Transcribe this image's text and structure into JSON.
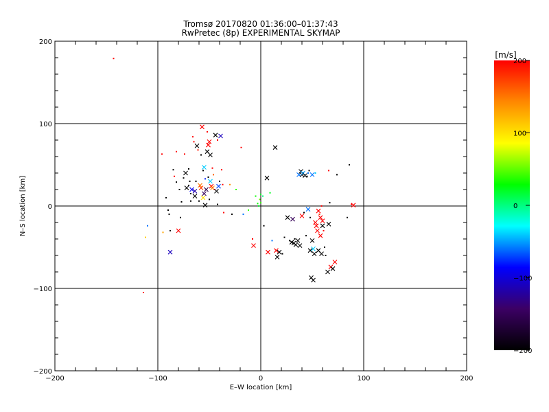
{
  "chart_data": {
    "type": "scatter",
    "title": "Tromsø 20170820 01:36:00–01:37:43",
    "subtitle": "RwPretec (8p) EXPERIMENTAL SKYMAP",
    "xlabel": "E–W location [km]",
    "ylabel": "N–S location [km]",
    "xlim": [
      -200,
      200
    ],
    "ylim": [
      -200,
      200
    ],
    "xticks": [
      -200,
      -100,
      0,
      100,
      200
    ],
    "yticks": [
      -200,
      -100,
      0,
      100,
      200
    ],
    "grid": true,
    "colorbar": {
      "label": "[m/s]",
      "range": [
        -200,
        200
      ],
      "ticks": [
        200,
        100,
        0,
        -100,
        -200
      ],
      "placement": "right",
      "colormap": [
        "#000000",
        "#3c0064",
        "#0000ff",
        "#00ffff",
        "#00ff00",
        "#ffff00",
        "#ff8800",
        "#ff0000"
      ]
    },
    "points": [
      {
        "x": -143,
        "y": 179,
        "v": 200,
        "m": "dot"
      },
      {
        "x": -114,
        "y": -105,
        "v": 200,
        "m": "dot"
      },
      {
        "x": -112,
        "y": -38,
        "v": 110,
        "m": "dot"
      },
      {
        "x": -110,
        "y": -24,
        "v": -60,
        "m": "dot"
      },
      {
        "x": -96,
        "y": 63,
        "v": 200,
        "m": "dot"
      },
      {
        "x": -95,
        "y": -32,
        "v": 130,
        "m": "dot"
      },
      {
        "x": -92,
        "y": 10,
        "v": -200,
        "m": "dot"
      },
      {
        "x": -90,
        "y": -5,
        "v": -200,
        "m": "dot"
      },
      {
        "x": -89,
        "y": -10,
        "v": -200,
        "m": "dot"
      },
      {
        "x": -88,
        "y": -56,
        "v": -110,
        "m": "x"
      },
      {
        "x": -88,
        "y": -30,
        "v": -200,
        "m": "dot"
      },
      {
        "x": -85,
        "y": 44,
        "v": -200,
        "m": "dot"
      },
      {
        "x": -84,
        "y": 36,
        "v": 200,
        "m": "dot"
      },
      {
        "x": -82,
        "y": 29,
        "v": -200,
        "m": "dot"
      },
      {
        "x": -82,
        "y": 66,
        "v": 200,
        "m": "dot"
      },
      {
        "x": -80,
        "y": -30,
        "v": 200,
        "m": "x"
      },
      {
        "x": -79,
        "y": 20,
        "v": -200,
        "m": "dot"
      },
      {
        "x": -78,
        "y": -14,
        "v": -200,
        "m": "dot"
      },
      {
        "x": -77,
        "y": 5,
        "v": -200,
        "m": "dot"
      },
      {
        "x": -75,
        "y": 34,
        "v": -200,
        "m": "dot"
      },
      {
        "x": -74,
        "y": 63,
        "v": 200,
        "m": "dot"
      },
      {
        "x": -73,
        "y": 40,
        "v": -200,
        "m": "x"
      },
      {
        "x": -72,
        "y": 22,
        "v": -200,
        "m": "x"
      },
      {
        "x": -70,
        "y": 45,
        "v": -200,
        "m": "dot"
      },
      {
        "x": -70,
        "y": 25,
        "v": -200,
        "m": "dot"
      },
      {
        "x": -69,
        "y": 30,
        "v": -200,
        "m": "dot"
      },
      {
        "x": -68,
        "y": 15,
        "v": -200,
        "m": "dot"
      },
      {
        "x": -68,
        "y": 6,
        "v": -200,
        "m": "dot"
      },
      {
        "x": -67,
        "y": 20,
        "v": -90,
        "m": "x"
      },
      {
        "x": -66,
        "y": 84,
        "v": 200,
        "m": "dot"
      },
      {
        "x": -65,
        "y": 78,
        "v": 200,
        "m": "dot"
      },
      {
        "x": -64,
        "y": 18,
        "v": -120,
        "m": "x"
      },
      {
        "x": -64,
        "y": 12,
        "v": -200,
        "m": "x"
      },
      {
        "x": -63,
        "y": 30,
        "v": -200,
        "m": "dot"
      },
      {
        "x": -62,
        "y": 73,
        "v": -200,
        "m": "x"
      },
      {
        "x": -61,
        "y": 68,
        "v": 190,
        "m": "dot"
      },
      {
        "x": -60,
        "y": 6,
        "v": -200,
        "m": "dot"
      },
      {
        "x": -59,
        "y": 25,
        "v": 150,
        "m": "x"
      },
      {
        "x": -58,
        "y": 62,
        "v": -200,
        "m": "dot"
      },
      {
        "x": -58,
        "y": 22,
        "v": 180,
        "m": "x"
      },
      {
        "x": -57,
        "y": 96,
        "v": 200,
        "m": "x"
      },
      {
        "x": -56,
        "y": 43,
        "v": -200,
        "m": "dot"
      },
      {
        "x": -56,
        "y": 10,
        "v": 100,
        "m": "x"
      },
      {
        "x": -55,
        "y": 47,
        "v": -40,
        "m": "x"
      },
      {
        "x": -55,
        "y": 15,
        "v": -150,
        "m": "x"
      },
      {
        "x": -54,
        "y": 33,
        "v": -80,
        "m": "dot"
      },
      {
        "x": -54,
        "y": 1,
        "v": -200,
        "m": "x"
      },
      {
        "x": -53,
        "y": 20,
        "v": -160,
        "m": "x"
      },
      {
        "x": -52,
        "y": 66,
        "v": -200,
        "m": "x"
      },
      {
        "x": -52,
        "y": 90,
        "v": 200,
        "m": "dot"
      },
      {
        "x": -51,
        "y": 74,
        "v": 200,
        "m": "x"
      },
      {
        "x": -51,
        "y": 35,
        "v": -200,
        "m": "dot"
      },
      {
        "x": -50,
        "y": 78,
        "v": 200,
        "m": "x"
      },
      {
        "x": -50,
        "y": 8,
        "v": -200,
        "m": "dot"
      },
      {
        "x": -49,
        "y": 62,
        "v": -200,
        "m": "x"
      },
      {
        "x": -49,
        "y": 30,
        "v": -40,
        "m": "x"
      },
      {
        "x": -48,
        "y": 24,
        "v": 200,
        "m": "x"
      },
      {
        "x": -47,
        "y": 22,
        "v": 140,
        "m": "x"
      },
      {
        "x": -47,
        "y": 46,
        "v": 200,
        "m": "dot"
      },
      {
        "x": -46,
        "y": 38,
        "v": 160,
        "m": "dot"
      },
      {
        "x": -45,
        "y": 20,
        "v": 200,
        "m": "dot"
      },
      {
        "x": -44,
        "y": 86,
        "v": -200,
        "m": "x"
      },
      {
        "x": -43,
        "y": 18,
        "v": -200,
        "m": "x"
      },
      {
        "x": -42,
        "y": 80,
        "v": 200,
        "m": "dot"
      },
      {
        "x": -42,
        "y": 2,
        "v": -200,
        "m": "dot"
      },
      {
        "x": -41,
        "y": 24,
        "v": -70,
        "m": "x"
      },
      {
        "x": -40,
        "y": 30,
        "v": -200,
        "m": "dot"
      },
      {
        "x": -39,
        "y": 85,
        "v": -110,
        "m": "x"
      },
      {
        "x": -38,
        "y": 44,
        "v": 200,
        "m": "dot"
      },
      {
        "x": -37,
        "y": 26,
        "v": 200,
        "m": "dot"
      },
      {
        "x": -36,
        "y": -8,
        "v": 200,
        "m": "dot"
      },
      {
        "x": -30,
        "y": 26,
        "v": 140,
        "m": "dot"
      },
      {
        "x": -28,
        "y": -10,
        "v": -200,
        "m": "dot"
      },
      {
        "x": -24,
        "y": 20,
        "v": 40,
        "m": "dot"
      },
      {
        "x": -19,
        "y": 71,
        "v": 200,
        "m": "dot"
      },
      {
        "x": -17,
        "y": -10,
        "v": -60,
        "m": "dot"
      },
      {
        "x": -12,
        "y": -5,
        "v": 40,
        "m": "dot"
      },
      {
        "x": -8,
        "y": -40,
        "v": 200,
        "m": "dot"
      },
      {
        "x": -7,
        "y": -48,
        "v": 200,
        "m": "x"
      },
      {
        "x": -5,
        "y": 12,
        "v": 30,
        "m": "dot"
      },
      {
        "x": -3,
        "y": 3,
        "v": 30,
        "m": "dot"
      },
      {
        "x": -2,
        "y": 0,
        "v": 20,
        "m": "dot"
      },
      {
        "x": -1,
        "y": 8,
        "v": 50,
        "m": "dot"
      },
      {
        "x": 0,
        "y": 14,
        "v": 20,
        "m": "dot"
      },
      {
        "x": 0,
        "y": 4,
        "v": 40,
        "m": "dot"
      },
      {
        "x": 2,
        "y": 12,
        "v": 0,
        "m": "dot"
      },
      {
        "x": 3,
        "y": -24,
        "v": -200,
        "m": "dot"
      },
      {
        "x": 6,
        "y": 34,
        "v": -200,
        "m": "x"
      },
      {
        "x": 7,
        "y": -56,
        "v": 200,
        "m": "x"
      },
      {
        "x": 9,
        "y": 16,
        "v": 20,
        "m": "dot"
      },
      {
        "x": 11,
        "y": -42,
        "v": -60,
        "m": "dot"
      },
      {
        "x": 14,
        "y": 71,
        "v": -200,
        "m": "x"
      },
      {
        "x": 15,
        "y": -54,
        "v": 200,
        "m": "x"
      },
      {
        "x": 16,
        "y": -62,
        "v": -200,
        "m": "x"
      },
      {
        "x": 18,
        "y": -56,
        "v": -200,
        "m": "x"
      },
      {
        "x": 21,
        "y": -58,
        "v": -200,
        "m": "dot"
      },
      {
        "x": 23,
        "y": -38,
        "v": -200,
        "m": "dot"
      },
      {
        "x": 26,
        "y": -14,
        "v": -200,
        "m": "x"
      },
      {
        "x": 28,
        "y": -42,
        "v": -200,
        "m": "dot"
      },
      {
        "x": 30,
        "y": -44,
        "v": -200,
        "m": "x"
      },
      {
        "x": 31,
        "y": -16,
        "v": -150,
        "m": "x"
      },
      {
        "x": 32,
        "y": -45,
        "v": -200,
        "m": "x"
      },
      {
        "x": 33,
        "y": -40,
        "v": -200,
        "m": "dot"
      },
      {
        "x": 34,
        "y": -47,
        "v": -200,
        "m": "x"
      },
      {
        "x": 36,
        "y": -42,
        "v": -200,
        "m": "x"
      },
      {
        "x": 37,
        "y": 38,
        "v": -60,
        "m": "x"
      },
      {
        "x": 38,
        "y": -48,
        "v": -200,
        "m": "x"
      },
      {
        "x": 39,
        "y": 42,
        "v": -200,
        "m": "x"
      },
      {
        "x": 40,
        "y": 38,
        "v": -200,
        "m": "x"
      },
      {
        "x": 40,
        "y": -12,
        "v": 200,
        "m": "x"
      },
      {
        "x": 41,
        "y": 40,
        "v": -50,
        "m": "x"
      },
      {
        "x": 42,
        "y": -8,
        "v": -200,
        "m": "dot"
      },
      {
        "x": 43,
        "y": 37,
        "v": -200,
        "m": "x"
      },
      {
        "x": 44,
        "y": -36,
        "v": -200,
        "m": "dot"
      },
      {
        "x": 45,
        "y": 36,
        "v": -200,
        "m": "dot"
      },
      {
        "x": 46,
        "y": -4,
        "v": -60,
        "m": "x"
      },
      {
        "x": 46,
        "y": 40,
        "v": -60,
        "m": "dot"
      },
      {
        "x": 47,
        "y": 43,
        "v": -200,
        "m": "dot"
      },
      {
        "x": 48,
        "y": -14,
        "v": -200,
        "m": "dot"
      },
      {
        "x": 48,
        "y": -54,
        "v": -200,
        "m": "x"
      },
      {
        "x": 49,
        "y": -87,
        "v": -200,
        "m": "x"
      },
      {
        "x": 50,
        "y": 38,
        "v": -60,
        "m": "x"
      },
      {
        "x": 50,
        "y": -42,
        "v": -200,
        "m": "x"
      },
      {
        "x": 51,
        "y": -90,
        "v": -200,
        "m": "x"
      },
      {
        "x": 51,
        "y": -52,
        "v": -40,
        "m": "x"
      },
      {
        "x": 52,
        "y": -58,
        "v": -200,
        "m": "x"
      },
      {
        "x": 53,
        "y": 40,
        "v": -40,
        "m": "dot"
      },
      {
        "x": 53,
        "y": -20,
        "v": 200,
        "m": "x"
      },
      {
        "x": 54,
        "y": -24,
        "v": 200,
        "m": "x"
      },
      {
        "x": 55,
        "y": -30,
        "v": 200,
        "m": "x"
      },
      {
        "x": 56,
        "y": -6,
        "v": 200,
        "m": "x"
      },
      {
        "x": 56,
        "y": -54,
        "v": -200,
        "m": "x"
      },
      {
        "x": 57,
        "y": -10,
        "v": 180,
        "m": "dot"
      },
      {
        "x": 58,
        "y": -14,
        "v": 200,
        "m": "x"
      },
      {
        "x": 58,
        "y": -36,
        "v": 200,
        "m": "x"
      },
      {
        "x": 59,
        "y": 0,
        "v": 200,
        "m": "dot"
      },
      {
        "x": 59,
        "y": -58,
        "v": -200,
        "m": "x"
      },
      {
        "x": 60,
        "y": -18,
        "v": 200,
        "m": "x"
      },
      {
        "x": 60,
        "y": -24,
        "v": -200,
        "m": "x"
      },
      {
        "x": 61,
        "y": -30,
        "v": 200,
        "m": "dot"
      },
      {
        "x": 62,
        "y": -50,
        "v": -200,
        "m": "dot"
      },
      {
        "x": 63,
        "y": -60,
        "v": -200,
        "m": "dot"
      },
      {
        "x": 65,
        "y": -80,
        "v": -200,
        "m": "x"
      },
      {
        "x": 66,
        "y": 43,
        "v": 200,
        "m": "dot"
      },
      {
        "x": 66,
        "y": -22,
        "v": -200,
        "m": "x"
      },
      {
        "x": 67,
        "y": 4,
        "v": -200,
        "m": "dot"
      },
      {
        "x": 68,
        "y": -74,
        "v": 200,
        "m": "x"
      },
      {
        "x": 70,
        "y": -76,
        "v": -200,
        "m": "x"
      },
      {
        "x": 72,
        "y": -68,
        "v": 200,
        "m": "x"
      },
      {
        "x": 74,
        "y": 38,
        "v": -200,
        "m": "dot"
      },
      {
        "x": 84,
        "y": -14,
        "v": -200,
        "m": "dot"
      },
      {
        "x": 86,
        "y": 50,
        "v": -200,
        "m": "dot"
      },
      {
        "x": 88,
        "y": 2,
        "v": 200,
        "m": "dot"
      },
      {
        "x": 90,
        "y": 1,
        "v": 200,
        "m": "x"
      }
    ]
  }
}
